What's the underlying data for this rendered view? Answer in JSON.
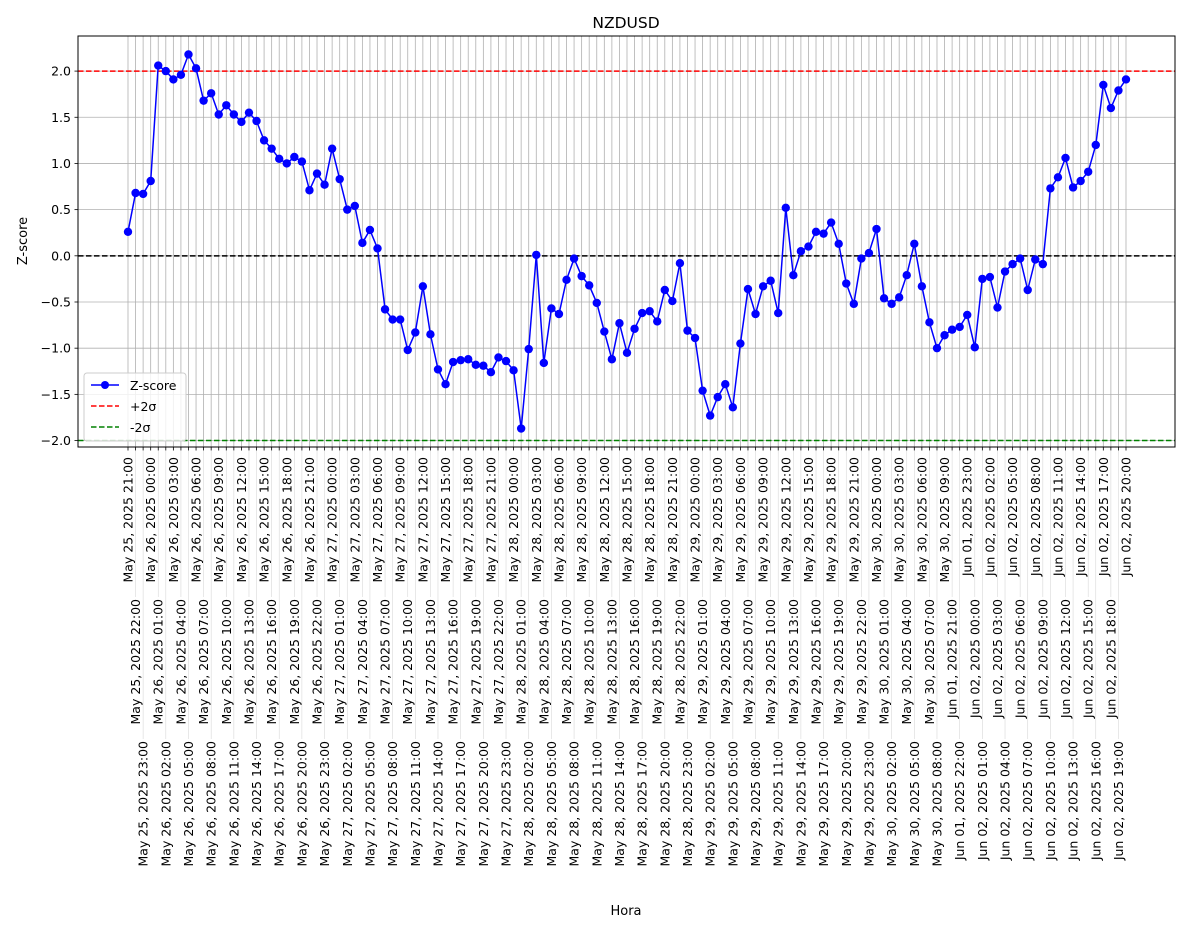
{
  "chart_data": {
    "type": "line",
    "title": "NZDUSD",
    "xlabel": "Hora",
    "ylabel": "Z-score",
    "ylim": [
      -2.07,
      2.38
    ],
    "yticks": [
      "2.0",
      "1.5",
      "1.0",
      "0.5",
      "0.0",
      "−0.5",
      "−1.0",
      "−1.5",
      "−2.0"
    ],
    "ytick_values": [
      2.0,
      1.5,
      1.0,
      0.5,
      0.0,
      -0.5,
      -1.0,
      -1.5,
      -2.0
    ],
    "grid": true,
    "legend_position": "lower-left",
    "colors": {
      "series": "#0000ff",
      "upper": "#ff0000",
      "lower": "#008000",
      "zero": "#000000",
      "grid": "#b0b0b0"
    },
    "reference_lines": [
      {
        "name": "+2σ",
        "value": 2.0,
        "color": "#ff0000",
        "style": "dashed"
      },
      {
        "name": "-2σ",
        "value": -2.0,
        "color": "#008000",
        "style": "dashed"
      },
      {
        "value": 0.0,
        "color": "#000000",
        "style": "dashed"
      }
    ],
    "series": [
      {
        "name": "Z-score",
        "marker": "circle",
        "values": [
          0.26,
          0.68,
          0.67,
          0.81,
          2.06,
          2.0,
          1.91,
          1.96,
          2.18,
          2.03,
          1.68,
          1.76,
          1.53,
          1.63,
          1.53,
          1.45,
          1.55,
          1.46,
          1.25,
          1.16,
          1.05,
          1.0,
          1.07,
          1.02,
          0.71,
          0.89,
          0.77,
          1.16,
          0.83,
          0.5,
          0.54,
          0.14,
          0.28,
          0.08,
          -0.58,
          -0.69,
          -0.69,
          -1.02,
          -0.83,
          -0.33,
          -0.85,
          -1.23,
          -1.39,
          -1.15,
          -1.13,
          -1.12,
          -1.18,
          -1.19,
          -1.26,
          -1.1,
          -1.14,
          -1.24,
          -1.87,
          -1.01,
          0.01,
          -1.16,
          -0.57,
          -0.63,
          -0.26,
          -0.03,
          -0.22,
          -0.32,
          -0.51,
          -0.82,
          -1.12,
          -0.73,
          -1.05,
          -0.79,
          -0.62,
          -0.6,
          -0.71,
          -0.37,
          -0.49,
          -0.08,
          -0.81,
          -0.89,
          -1.46,
          -1.73,
          -1.53,
          -1.39,
          -1.64,
          -0.95,
          -0.36,
          -0.63,
          -0.33,
          -0.27,
          -0.62,
          0.52,
          -0.21,
          0.05,
          0.1,
          0.26,
          0.24,
          0.36,
          0.13,
          -0.3,
          -0.52,
          -0.03,
          0.03,
          0.29,
          -0.46,
          -0.52,
          -0.45,
          -0.21,
          0.13,
          -0.33,
          -0.72,
          -1.0,
          -0.86,
          -0.8,
          -0.77,
          -0.64,
          -0.99,
          -0.25,
          -0.23,
          -0.56,
          -0.17,
          -0.09,
          -0.03,
          -0.37,
          -0.04,
          -0.09,
          0.73,
          0.85,
          1.06,
          0.74,
          0.81,
          0.91,
          1.2,
          1.85,
          1.6,
          1.79,
          1.91
        ]
      }
    ],
    "x": [
      "May 25, 2025 21:00",
      "May 25, 2025 22:00",
      "May 25, 2025 23:00",
      "May 26, 2025 00:00",
      "May 26, 2025 01:00",
      "May 26, 2025 02:00",
      "May 26, 2025 03:00",
      "May 26, 2025 04:00",
      "May 26, 2025 05:00",
      "May 26, 2025 06:00",
      "May 26, 2025 07:00",
      "May 26, 2025 08:00",
      "May 26, 2025 09:00",
      "May 26, 2025 10:00",
      "May 26, 2025 11:00",
      "May 26, 2025 12:00",
      "May 26, 2025 13:00",
      "May 26, 2025 14:00",
      "May 26, 2025 15:00",
      "May 26, 2025 16:00",
      "May 26, 2025 17:00",
      "May 26, 2025 18:00",
      "May 26, 2025 19:00",
      "May 26, 2025 20:00",
      "May 26, 2025 21:00",
      "May 26, 2025 22:00",
      "May 26, 2025 23:00",
      "May 27, 2025 00:00",
      "May 27, 2025 01:00",
      "May 27, 2025 02:00",
      "May 27, 2025 03:00",
      "May 27, 2025 04:00",
      "May 27, 2025 05:00",
      "May 27, 2025 06:00",
      "May 27, 2025 07:00",
      "May 27, 2025 08:00",
      "May 27, 2025 09:00",
      "May 27, 2025 10:00",
      "May 27, 2025 11:00",
      "May 27, 2025 12:00",
      "May 27, 2025 13:00",
      "May 27, 2025 14:00",
      "May 27, 2025 15:00",
      "May 27, 2025 16:00",
      "May 27, 2025 17:00",
      "May 27, 2025 18:00",
      "May 27, 2025 19:00",
      "May 27, 2025 20:00",
      "May 27, 2025 21:00",
      "May 27, 2025 22:00",
      "May 27, 2025 23:00",
      "May 28, 2025 00:00",
      "May 28, 2025 01:00",
      "May 28, 2025 02:00",
      "May 28, 2025 03:00",
      "May 28, 2025 04:00",
      "May 28, 2025 05:00",
      "May 28, 2025 06:00",
      "May 28, 2025 07:00",
      "May 28, 2025 08:00",
      "May 28, 2025 09:00",
      "May 28, 2025 10:00",
      "May 28, 2025 11:00",
      "May 28, 2025 12:00",
      "May 28, 2025 13:00",
      "May 28, 2025 14:00",
      "May 28, 2025 15:00",
      "May 28, 2025 16:00",
      "May 28, 2025 17:00",
      "May 28, 2025 18:00",
      "May 28, 2025 19:00",
      "May 28, 2025 20:00",
      "May 28, 2025 21:00",
      "May 28, 2025 22:00",
      "May 28, 2025 23:00",
      "May 29, 2025 00:00",
      "May 29, 2025 01:00",
      "May 29, 2025 02:00",
      "May 29, 2025 03:00",
      "May 29, 2025 04:00",
      "May 29, 2025 05:00",
      "May 29, 2025 06:00",
      "May 29, 2025 07:00",
      "May 29, 2025 08:00",
      "May 29, 2025 09:00",
      "May 29, 2025 10:00",
      "May 29, 2025 11:00",
      "May 29, 2025 12:00",
      "May 29, 2025 13:00",
      "May 29, 2025 14:00",
      "May 29, 2025 15:00",
      "May 29, 2025 16:00",
      "May 29, 2025 17:00",
      "May 29, 2025 18:00",
      "May 29, 2025 19:00",
      "May 29, 2025 20:00",
      "May 29, 2025 21:00",
      "May 29, 2025 22:00",
      "May 29, 2025 23:00",
      "May 30, 2025 00:00",
      "May 30, 2025 01:00",
      "May 30, 2025 02:00",
      "May 30, 2025 03:00",
      "May 30, 2025 04:00",
      "May 30, 2025 05:00",
      "May 30, 2025 06:00",
      "May 30, 2025 07:00",
      "May 30, 2025 08:00",
      "May 30, 2025 09:00",
      "Jun 01, 2025 21:00",
      "Jun 01, 2025 22:00",
      "Jun 01, 2025 23:00",
      "Jun 02, 2025 00:00",
      "Jun 02, 2025 01:00",
      "Jun 02, 2025 02:00",
      "Jun 02, 2025 03:00",
      "Jun 02, 2025 04:00",
      "Jun 02, 2025 05:00",
      "Jun 02, 2025 06:00",
      "Jun 02, 2025 07:00",
      "Jun 02, 2025 08:00",
      "Jun 02, 2025 09:00",
      "Jun 02, 2025 10:00",
      "Jun 02, 2025 11:00",
      "Jun 02, 2025 12:00",
      "Jun 02, 2025 13:00",
      "Jun 02, 2025 14:00",
      "Jun 02, 2025 15:00",
      "Jun 02, 2025 16:00",
      "Jun 02, 2025 17:00",
      "Jun 02, 2025 18:00",
      "Jun 02, 2025 19:00",
      "Jun 02, 2025 20:00"
    ]
  }
}
